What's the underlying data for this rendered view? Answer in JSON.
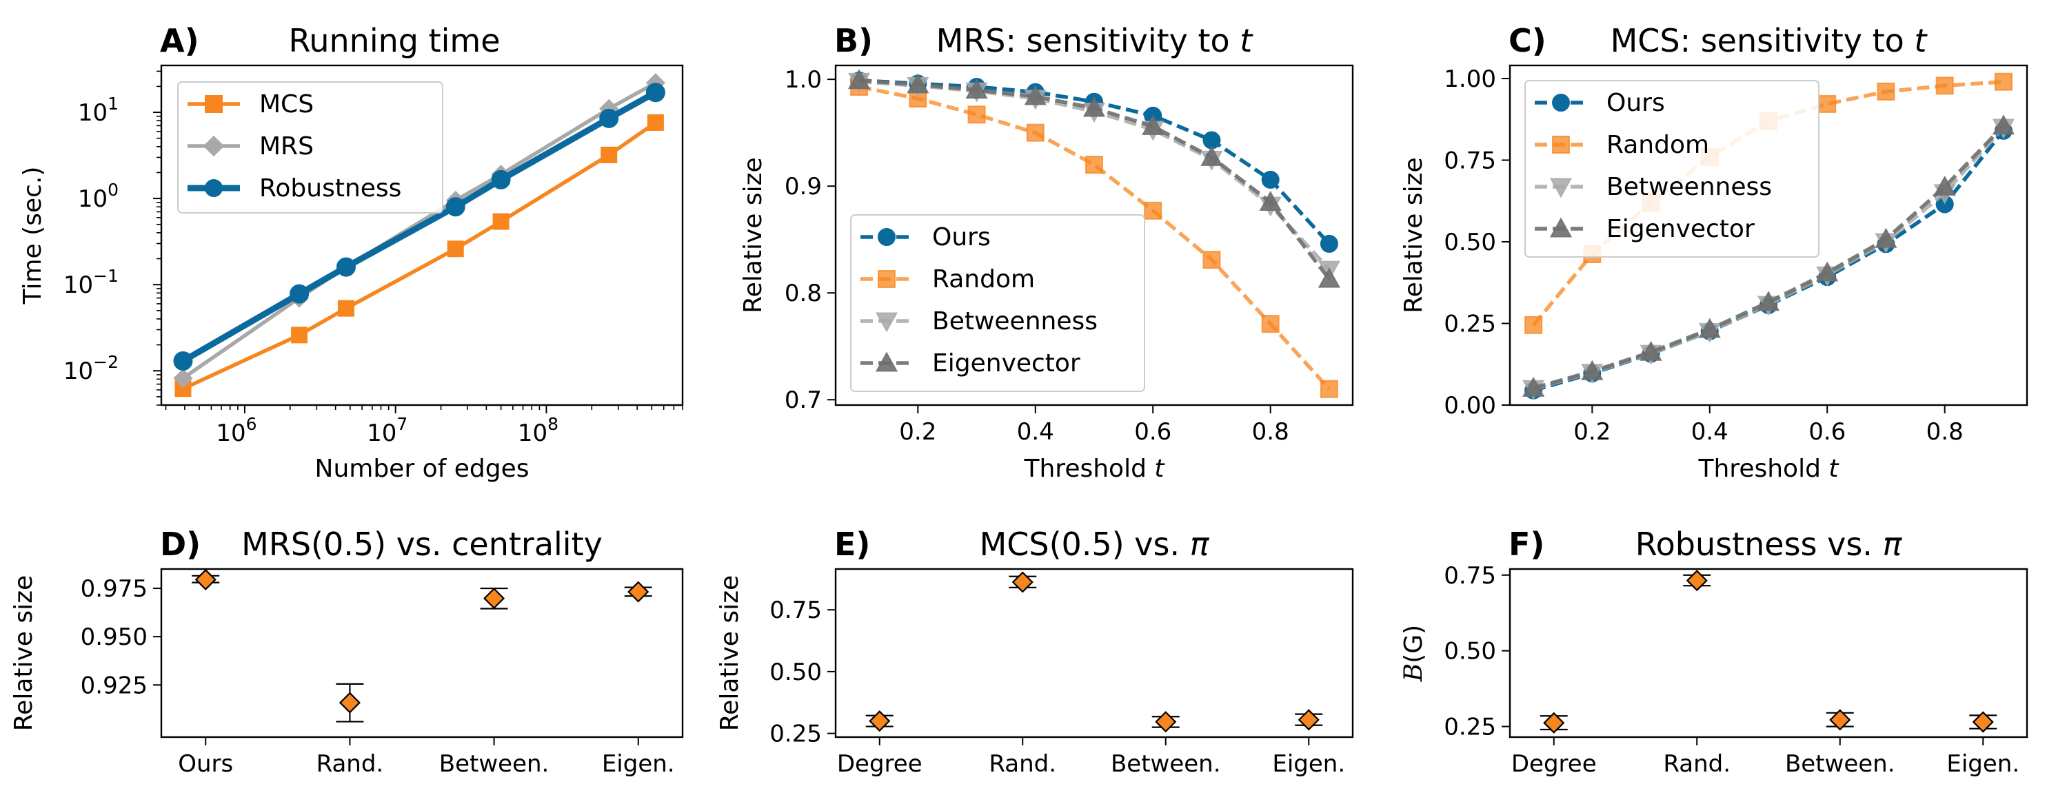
{
  "colors": {
    "ours": "#0b6a9d",
    "random": "#f7861f",
    "betweenness": "#a8a8a8",
    "eigenvector": "#6e6e6e",
    "mcs": "#f7861f",
    "mrs": "#a8a8a8",
    "robustness": "#0b6a9d",
    "marker_fill": "#f7861f"
  },
  "chart_data": [
    {
      "id": "A",
      "type": "line",
      "letter": "A)",
      "title": "Running time",
      "xlabel": "Number of edges",
      "ylabel": "Time (sec.)",
      "xscale": "log",
      "yscale": "log",
      "xlim": [
        280000,
        800000000
      ],
      "ylim": [
        0.004,
        35
      ],
      "xticks": [
        {
          "value": 1000000,
          "label": "10",
          "exp": "6"
        },
        {
          "value": 10000000,
          "label": "10",
          "exp": "7"
        },
        {
          "value": 100000000,
          "label": "10",
          "exp": "8"
        }
      ],
      "yticks": [
        {
          "value": 0.01,
          "label": "10",
          "exp": "−2"
        },
        {
          "value": 0.1,
          "label": "10",
          "exp": "−1"
        },
        {
          "value": 1,
          "label": "10",
          "exp": "0"
        },
        {
          "value": 10,
          "label": "10",
          "exp": "1"
        }
      ],
      "legend_position": "top-left",
      "x": [
        390000,
        2300000,
        4700000,
        25000000,
        50000000,
        260000000,
        530000000
      ],
      "series": [
        {
          "name": "MCS",
          "color_key": "mcs",
          "marker": "square",
          "style": "solid",
          "values": [
            0.0062,
            0.026,
            0.053,
            0.26,
            0.54,
            3.2,
            7.6
          ]
        },
        {
          "name": "MRS",
          "color_key": "mrs",
          "marker": "diamond",
          "style": "solid",
          "values": [
            0.0082,
            0.07,
            0.16,
            0.95,
            1.9,
            11,
            22
          ]
        },
        {
          "name": "Robustness",
          "color_key": "robustness",
          "marker": "circle",
          "style": "solid",
          "thick": true,
          "values": [
            0.013,
            0.078,
            0.16,
            0.8,
            1.65,
            8.5,
            17
          ]
        }
      ]
    },
    {
      "id": "B",
      "type": "line",
      "letter": "B)",
      "title": "MRS: sensitivity to ",
      "title_var": "t",
      "xlabel": "Threshold ",
      "xlabel_var": "t",
      "ylabel": "Relative size",
      "xlim": [
        0.06,
        0.94
      ],
      "ylim": [
        0.695,
        1.013
      ],
      "xticks": [
        {
          "value": 0.2,
          "label": "0.2"
        },
        {
          "value": 0.4,
          "label": "0.4"
        },
        {
          "value": 0.6,
          "label": "0.6"
        },
        {
          "value": 0.8,
          "label": "0.8"
        }
      ],
      "yticks": [
        {
          "value": 0.7,
          "label": "0.7"
        },
        {
          "value": 0.8,
          "label": "0.8"
        },
        {
          "value": 0.9,
          "label": "0.9"
        },
        {
          "value": 1.0,
          "label": "1.0"
        }
      ],
      "legend_position": "bottom-left",
      "x": [
        0.1,
        0.2,
        0.3,
        0.4,
        0.5,
        0.6,
        0.7,
        0.8,
        0.9
      ],
      "series": [
        {
          "name": "Ours",
          "color_key": "ours",
          "marker": "circle",
          "style": "dashed",
          "values": [
            0.999,
            0.996,
            0.993,
            0.988,
            0.979,
            0.966,
            0.943,
            0.906,
            0.846
          ]
        },
        {
          "name": "Random",
          "color_key": "random",
          "marker": "square",
          "style": "dashed",
          "alpha": 0.75,
          "values": [
            0.993,
            0.982,
            0.967,
            0.95,
            0.92,
            0.877,
            0.831,
            0.771,
            0.71
          ]
        },
        {
          "name": "Betweenness",
          "color_key": "betweenness",
          "marker": "triangle-down",
          "style": "dashed",
          "alpha": 0.85,
          "values": [
            0.998,
            0.994,
            0.989,
            0.982,
            0.97,
            0.953,
            0.925,
            0.882,
            0.822
          ]
        },
        {
          "name": "Eigenvector",
          "color_key": "eigenvector",
          "marker": "triangle-up",
          "style": "dashed",
          "alpha": 0.9,
          "values": [
            0.999,
            0.995,
            0.99,
            0.984,
            0.973,
            0.956,
            0.927,
            0.885,
            0.813
          ]
        }
      ]
    },
    {
      "id": "C",
      "type": "line",
      "letter": "C)",
      "title": "MCS: sensitivity to ",
      "title_var": "t",
      "xlabel": "Threshold ",
      "xlabel_var": "t",
      "ylabel": "Relative size",
      "xlim": [
        0.06,
        0.94
      ],
      "ylim": [
        0.0,
        1.04
      ],
      "xticks": [
        {
          "value": 0.2,
          "label": "0.2"
        },
        {
          "value": 0.4,
          "label": "0.4"
        },
        {
          "value": 0.6,
          "label": "0.6"
        },
        {
          "value": 0.8,
          "label": "0.8"
        }
      ],
      "yticks": [
        {
          "value": 0.0,
          "label": "0.00"
        },
        {
          "value": 0.25,
          "label": "0.25"
        },
        {
          "value": 0.5,
          "label": "0.50"
        },
        {
          "value": 0.75,
          "label": "0.75"
        },
        {
          "value": 1.0,
          "label": "1.00"
        }
      ],
      "legend_position": "top-left",
      "x": [
        0.1,
        0.2,
        0.3,
        0.4,
        0.5,
        0.6,
        0.7,
        0.8,
        0.9
      ],
      "series": [
        {
          "name": "Ours",
          "color_key": "ours",
          "marker": "circle",
          "style": "dashed",
          "values": [
            0.045,
            0.097,
            0.157,
            0.226,
            0.306,
            0.392,
            0.493,
            0.615,
            0.84
          ]
        },
        {
          "name": "Random",
          "color_key": "random",
          "marker": "square",
          "style": "dashed",
          "alpha": 0.75,
          "values": [
            0.245,
            0.462,
            0.62,
            0.76,
            0.87,
            0.922,
            0.96,
            0.978,
            0.99
          ]
        },
        {
          "name": "Betweenness",
          "color_key": "betweenness",
          "marker": "triangle-down",
          "style": "dashed",
          "alpha": 0.85,
          "values": [
            0.05,
            0.1,
            0.158,
            0.225,
            0.308,
            0.398,
            0.5,
            0.65,
            0.85
          ]
        },
        {
          "name": "Eigenvector",
          "color_key": "eigenvector",
          "marker": "triangle-up",
          "style": "dashed",
          "alpha": 0.9,
          "values": [
            0.052,
            0.103,
            0.162,
            0.232,
            0.315,
            0.405,
            0.508,
            0.668,
            0.855
          ]
        }
      ]
    },
    {
      "id": "D",
      "type": "errorbar",
      "letter": "D)",
      "title": "MRS(0.5) vs. centrality",
      "xlabel": "",
      "ylabel": "Relative size",
      "ylim": [
        0.898,
        0.985
      ],
      "categories": [
        "Ours",
        "Rand.",
        "Between.",
        "Eigen."
      ],
      "yticks": [
        {
          "value": 0.925,
          "label": "0.925"
        },
        {
          "value": 0.95,
          "label": "0.950"
        },
        {
          "value": 0.975,
          "label": "0.975"
        }
      ],
      "values": [
        0.9795,
        0.9158,
        0.9698,
        0.9732
      ],
      "err_low": [
        0.978,
        0.906,
        0.9645,
        0.971
      ],
      "err_high": [
        0.9815,
        0.9255,
        0.975,
        0.9755
      ]
    },
    {
      "id": "E",
      "type": "errorbar",
      "letter": "E)",
      "title": "MCS(0.5) vs. ",
      "title_var": "π",
      "xlabel": "",
      "ylabel": "Relative size",
      "ylim": [
        0.235,
        0.915
      ],
      "categories": [
        "Degree",
        "Rand.",
        "Between.",
        "Eigen."
      ],
      "yticks": [
        {
          "value": 0.25,
          "label": "0.25"
        },
        {
          "value": 0.5,
          "label": "0.50"
        },
        {
          "value": 0.75,
          "label": "0.75"
        }
      ],
      "values": [
        0.3,
        0.862,
        0.297,
        0.305
      ],
      "err_low": [
        0.278,
        0.84,
        0.275,
        0.283
      ],
      "err_high": [
        0.322,
        0.885,
        0.318,
        0.328
      ]
    },
    {
      "id": "F",
      "type": "errorbar",
      "letter": "F)",
      "title": "Robustness vs. ",
      "title_var": "π",
      "xlabel": "",
      "ylabel": "B(G)",
      "ylabel_math": true,
      "ylim": [
        0.215,
        0.77
      ],
      "categories": [
        "Degree",
        "Rand.",
        "Between.",
        "Eigen."
      ],
      "yticks": [
        {
          "value": 0.25,
          "label": "0.25"
        },
        {
          "value": 0.5,
          "label": "0.50"
        },
        {
          "value": 0.75,
          "label": "0.75"
        }
      ],
      "values": [
        0.262,
        0.732,
        0.272,
        0.265
      ],
      "err_low": [
        0.24,
        0.715,
        0.25,
        0.243
      ],
      "err_high": [
        0.285,
        0.75,
        0.295,
        0.287
      ]
    }
  ]
}
